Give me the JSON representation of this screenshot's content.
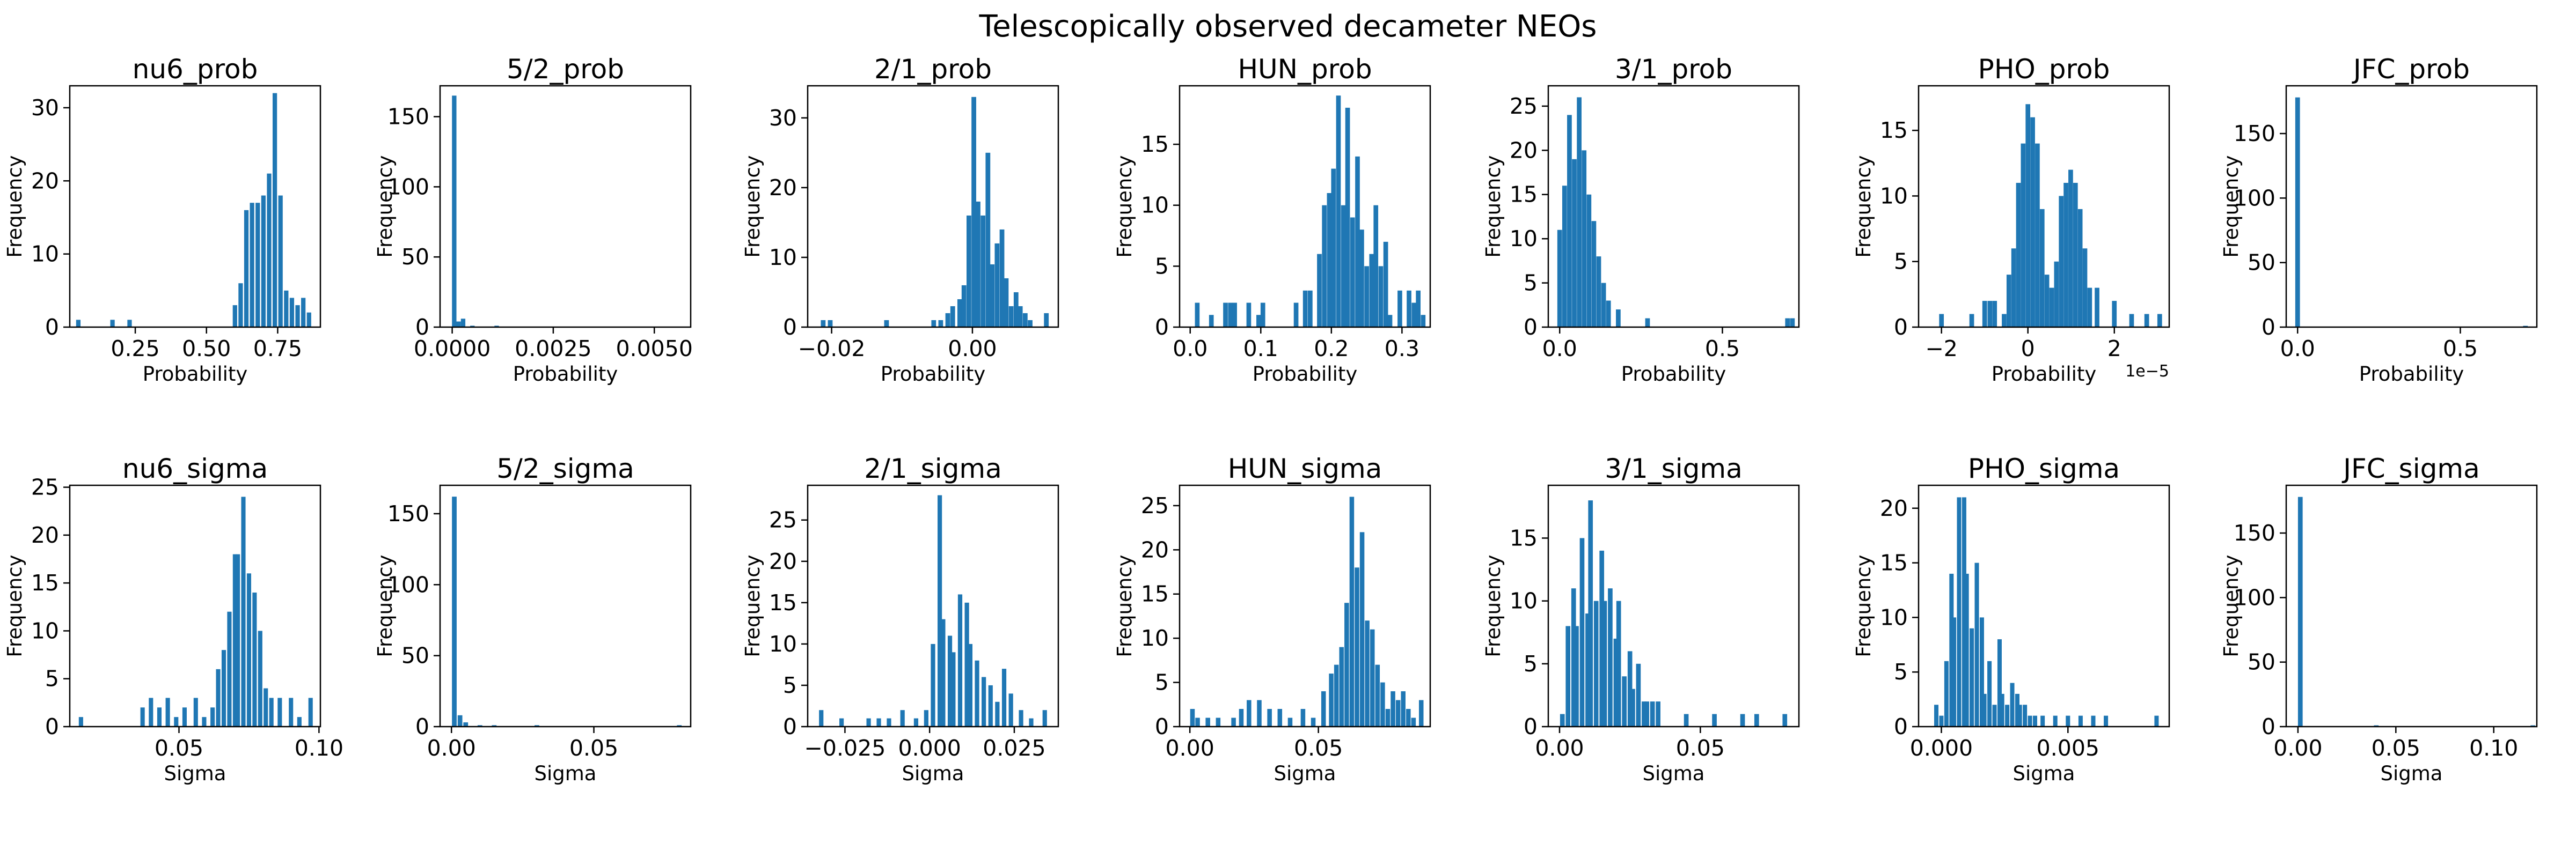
{
  "figure": {
    "suptitle": "Telescopically observed decameter NEOs",
    "bar_color": "#1f77b4"
  },
  "chart_data": [
    {
      "type": "bar",
      "title": "nu6_prob",
      "xlabel": "Probability",
      "ylabel": "Frequency",
      "xlim": [
        0.02,
        0.9
      ],
      "ylim": [
        0,
        33
      ],
      "xticks": [
        0.25,
        0.5,
        0.75
      ],
      "xtick_labels": [
        "0.25",
        "0.50",
        "0.75"
      ],
      "yticks": [
        0,
        10,
        20,
        30
      ],
      "ytick_labels": [
        "0",
        "10",
        "20",
        "30"
      ],
      "offset_label": "",
      "bin_width": 0.0155,
      "bins_x": [
        0.05,
        0.17,
        0.23,
        0.6,
        0.62,
        0.64,
        0.66,
        0.68,
        0.7,
        0.72,
        0.74,
        0.76,
        0.78,
        0.8,
        0.82,
        0.84,
        0.86
      ],
      "values": [
        1,
        1,
        1,
        3,
        6,
        16,
        17,
        17,
        18,
        21,
        32,
        18,
        5,
        4,
        3,
        4,
        2
      ]
    },
    {
      "type": "bar",
      "title": "5/2_prob",
      "xlabel": "Probability",
      "ylabel": "Frequency",
      "xlim": [
        -0.0003,
        0.0059
      ],
      "ylim": [
        0,
        172
      ],
      "xticks": [
        0,
        0.0025,
        0.005
      ],
      "xtick_labels": [
        "0.0000",
        "0.0025",
        "0.0050"
      ],
      "yticks": [
        0,
        50,
        100,
        150
      ],
      "ytick_labels": [
        "0",
        "50",
        "100",
        "150"
      ],
      "offset_label": "",
      "bin_width": 0.00011,
      "bins_x": [
        5e-05,
        0.00016,
        0.00027,
        0.0005,
        0.0011
      ],
      "values": [
        165,
        4,
        6,
        1,
        1
      ]
    },
    {
      "type": "bar",
      "title": "2/1_prob",
      "xlabel": "Probability",
      "ylabel": "Frequency",
      "xlim": [
        -0.0234,
        0.0122
      ],
      "ylim": [
        0,
        34.6
      ],
      "xticks": [
        -0.02,
        0
      ],
      "xtick_labels": [
        "−0.02",
        "0.00"
      ],
      "yticks": [
        0,
        10,
        20,
        30
      ],
      "ytick_labels": [
        "0",
        "10",
        "20",
        "30"
      ],
      "offset_label": "",
      "bin_width": 0.00067,
      "bins_x": [
        -0.0212,
        -0.0202,
        -0.0122,
        -0.0055,
        -0.0045,
        -0.0035,
        -0.0028,
        -0.0018,
        -0.0012,
        -0.0005,
        0.0002,
        0.0008,
        0.0015,
        0.0022,
        0.0028,
        0.0035,
        0.0042,
        0.0048,
        0.0055,
        0.0062,
        0.0068,
        0.0075,
        0.0082,
        0.0105
      ],
      "values": [
        1,
        1,
        1,
        1,
        1,
        2,
        3,
        4,
        6,
        16,
        33,
        18,
        16,
        25,
        9,
        12,
        14,
        7,
        3,
        5,
        3,
        2,
        1,
        2
      ]
    },
    {
      "type": "bar",
      "title": "HUN_prob",
      "xlabel": "Probability",
      "ylabel": "Frequency",
      "xlim": [
        -0.015,
        0.34
      ],
      "ylim": [
        0,
        19.8
      ],
      "xticks": [
        0,
        0.1,
        0.2,
        0.3
      ],
      "xtick_labels": [
        "0.0",
        "0.1",
        "0.2",
        "0.3"
      ],
      "yticks": [
        0,
        5,
        10,
        15
      ],
      "ytick_labels": [
        "0",
        "5",
        "10",
        "15"
      ],
      "offset_label": "",
      "bin_width": 0.0066,
      "bins_x": [
        0.01,
        0.03,
        0.05,
        0.057,
        0.063,
        0.083,
        0.097,
        0.103,
        0.15,
        0.163,
        0.17,
        0.183,
        0.19,
        0.197,
        0.203,
        0.21,
        0.217,
        0.223,
        0.23,
        0.237,
        0.243,
        0.25,
        0.257,
        0.263,
        0.27,
        0.277,
        0.283,
        0.297,
        0.31,
        0.317,
        0.323,
        0.33
      ],
      "values": [
        2,
        1,
        2,
        2,
        2,
        2,
        1,
        2,
        2,
        3,
        3,
        6,
        10,
        11,
        13,
        19,
        10,
        18,
        9,
        14,
        8,
        5,
        6,
        10,
        5,
        7,
        1,
        3,
        3,
        2,
        3,
        1
      ]
    },
    {
      "type": "bar",
      "title": "3/1_prob",
      "xlabel": "Probability",
      "ylabel": "Frequency",
      "xlim": [
        -0.035,
        0.735
      ],
      "ylim": [
        0,
        27.3
      ],
      "xticks": [
        0,
        0.5
      ],
      "xtick_labels": [
        "0.0",
        "0.5"
      ],
      "yticks": [
        0,
        5,
        10,
        15,
        20,
        25
      ],
      "ytick_labels": [
        "0",
        "5",
        "10",
        "15",
        "20",
        "25"
      ],
      "offset_label": "",
      "bin_width": 0.0144,
      "bins_x": [
        0.0,
        0.015,
        0.03,
        0.045,
        0.06,
        0.075,
        0.09,
        0.105,
        0.12,
        0.135,
        0.15,
        0.18,
        0.27,
        0.7,
        0.715
      ],
      "values": [
        11,
        16,
        24,
        19,
        26,
        20,
        15,
        12,
        8,
        5,
        3,
        2,
        1,
        1,
        1
      ]
    },
    {
      "type": "bar",
      "title": "PHO_prob",
      "xlabel": "Probability",
      "ylabel": "Frequency",
      "xlim": [
        -2.53,
        3.27
      ],
      "ylim": [
        0,
        18.4
      ],
      "xticks": [
        -2,
        0,
        2
      ],
      "xtick_labels": [
        "−2",
        "0",
        "2"
      ],
      "yticks": [
        0,
        5,
        10,
        15
      ],
      "ytick_labels": [
        "0",
        "5",
        "10",
        "15"
      ],
      "offset_label": "1e−5",
      "bin_width": 0.108,
      "bins_x": [
        -2.0,
        -1.3,
        -1.0,
        -0.88,
        -0.77,
        -0.55,
        -0.44,
        -0.33,
        -0.22,
        -0.11,
        0.0,
        0.11,
        0.22,
        0.33,
        0.44,
        0.55,
        0.66,
        0.77,
        0.88,
        0.99,
        1.1,
        1.21,
        1.32,
        1.43,
        1.6,
        2.0,
        2.4,
        2.75,
        3.05
      ],
      "values": [
        1,
        1,
        2,
        2,
        2,
        1,
        4,
        6,
        11,
        14,
        17,
        16,
        14,
        9,
        4,
        3,
        5,
        10,
        11,
        12,
        11,
        9,
        6,
        3,
        3,
        2,
        1,
        1,
        1
      ]
    },
    {
      "type": "bar",
      "title": "JFC_prob",
      "xlabel": "Probability",
      "ylabel": "Frequency",
      "xlim": [
        -0.035,
        0.735
      ],
      "ylim": [
        0,
        187
      ],
      "xticks": [
        0,
        0.5
      ],
      "xtick_labels": [
        "0.0",
        "0.5"
      ],
      "yticks": [
        0,
        50,
        100,
        150
      ],
      "ytick_labels": [
        "0",
        "50",
        "100",
        "150"
      ],
      "offset_label": "",
      "bin_width": 0.0144,
      "bins_x": [
        0.0,
        0.7
      ],
      "values": [
        178,
        1
      ]
    },
    {
      "type": "bar",
      "title": "nu6_sigma",
      "xlabel": "Sigma",
      "ylabel": "Frequency",
      "xlim": [
        0.011,
        0.1005
      ],
      "ylim": [
        0,
        25.2
      ],
      "xticks": [
        0.05,
        0.1
      ],
      "xtick_labels": [
        "0.05",
        "0.10"
      ],
      "yticks": [
        0,
        5,
        10,
        15,
        20,
        25
      ],
      "ytick_labels": [
        "0",
        "5",
        "10",
        "15",
        "20",
        "25"
      ],
      "offset_label": "",
      "bin_width": 0.00155,
      "bins_x": [
        0.015,
        0.037,
        0.04,
        0.043,
        0.046,
        0.049,
        0.052,
        0.056,
        0.059,
        0.062,
        0.064,
        0.066,
        0.068,
        0.07,
        0.071,
        0.073,
        0.075,
        0.077,
        0.079,
        0.081,
        0.083,
        0.086,
        0.09,
        0.093,
        0.097
      ],
      "values": [
        1,
        2,
        3,
        2,
        3,
        1,
        2,
        3,
        1,
        2,
        6,
        8,
        12,
        18,
        18,
        24,
        16,
        14,
        10,
        4,
        3,
        3,
        3,
        1,
        3
      ]
    },
    {
      "type": "bar",
      "title": "5/2_sigma",
      "xlabel": "Sigma",
      "ylabel": "Frequency",
      "xlim": [
        -0.004,
        0.084
      ],
      "ylim": [
        0,
        170
      ],
      "xticks": [
        0,
        0.05
      ],
      "xtick_labels": [
        "0.00",
        "0.05"
      ],
      "yticks": [
        0,
        50,
        100,
        150
      ],
      "ytick_labels": [
        "0",
        "50",
        "100",
        "150"
      ],
      "offset_label": "",
      "bin_width": 0.00165,
      "bins_x": [
        0.001,
        0.003,
        0.005,
        0.01,
        0.015,
        0.03,
        0.08
      ],
      "values": [
        162,
        8,
        3,
        1,
        1,
        1,
        1
      ]
    },
    {
      "type": "bar",
      "title": "2/1_sigma",
      "xlabel": "Sigma",
      "ylabel": "Frequency",
      "xlim": [
        -0.036,
        0.038
      ],
      "ylim": [
        0,
        29.2
      ],
      "xticks": [
        -0.025,
        0,
        0.025
      ],
      "xtick_labels": [
        "−0.025",
        "0.000",
        "0.025"
      ],
      "yticks": [
        0,
        5,
        10,
        15,
        20,
        25
      ],
      "ytick_labels": [
        "0",
        "5",
        "10",
        "15",
        "20",
        "25"
      ],
      "offset_label": "",
      "bin_width": 0.0013,
      "bins_x": [
        -0.032,
        -0.026,
        -0.018,
        -0.015,
        -0.012,
        -0.008,
        -0.004,
        -0.001,
        0.001,
        0.003,
        0.004,
        0.006,
        0.007,
        0.009,
        0.011,
        0.012,
        0.014,
        0.016,
        0.018,
        0.02,
        0.022,
        0.024,
        0.027,
        0.03,
        0.034
      ],
      "values": [
        2,
        1,
        1,
        1,
        1,
        2,
        1,
        2,
        10,
        28,
        13,
        11,
        9,
        16,
        15,
        10,
        8,
        6,
        5,
        3,
        7,
        4,
        2,
        1,
        2
      ]
    },
    {
      "type": "bar",
      "title": "HUN_sigma",
      "xlabel": "Sigma",
      "ylabel": "Frequency",
      "xlim": [
        -0.004,
        0.0935
      ],
      "ylim": [
        0,
        27.3
      ],
      "xticks": [
        0,
        0.05
      ],
      "xtick_labels": [
        "0.00",
        "0.05"
      ],
      "yticks": [
        0,
        5,
        10,
        15,
        20,
        25
      ],
      "ytick_labels": [
        "0",
        "5",
        "10",
        "15",
        "20",
        "25"
      ],
      "offset_label": "",
      "bin_width": 0.00178,
      "bins_x": [
        0.001,
        0.003,
        0.007,
        0.011,
        0.017,
        0.02,
        0.023,
        0.027,
        0.031,
        0.035,
        0.039,
        0.044,
        0.048,
        0.052,
        0.055,
        0.057,
        0.059,
        0.061,
        0.063,
        0.065,
        0.067,
        0.069,
        0.071,
        0.073,
        0.075,
        0.077,
        0.079,
        0.081,
        0.083,
        0.085,
        0.087,
        0.09
      ],
      "values": [
        2,
        1,
        1,
        1,
        1,
        2,
        3,
        3,
        2,
        2,
        1,
        2,
        1,
        4,
        6,
        7,
        9,
        14,
        26,
        18,
        22,
        12,
        11,
        7,
        5,
        2,
        4,
        3,
        4,
        2,
        1,
        3
      ]
    },
    {
      "type": "bar",
      "title": "3/1_sigma",
      "xlabel": "Sigma",
      "ylabel": "Frequency",
      "xlim": [
        -0.004,
        0.085
      ],
      "ylim": [
        0,
        19.2
      ],
      "xticks": [
        0,
        0.05
      ],
      "xtick_labels": [
        "0.00",
        "0.05"
      ],
      "yticks": [
        0,
        5,
        10,
        15
      ],
      "ytick_labels": [
        "0",
        "5",
        "10",
        "15"
      ],
      "offset_label": "",
      "bin_width": 0.00165,
      "bins_x": [
        0.001,
        0.003,
        0.005,
        0.006,
        0.008,
        0.01,
        0.011,
        0.013,
        0.015,
        0.016,
        0.018,
        0.02,
        0.021,
        0.023,
        0.025,
        0.026,
        0.028,
        0.03,
        0.031,
        0.033,
        0.035,
        0.045,
        0.055,
        0.065,
        0.07,
        0.08
      ],
      "values": [
        1,
        8,
        11,
        8,
        15,
        9,
        18,
        10,
        14,
        10,
        11,
        7,
        10,
        4,
        6,
        3,
        5,
        2,
        2,
        2,
        2,
        1,
        1,
        1,
        1,
        1
      ]
    },
    {
      "type": "bar",
      "title": "PHO_sigma",
      "xlabel": "Sigma",
      "ylabel": "Frequency",
      "xlim": [
        -0.0009,
        0.009
      ],
      "ylim": [
        0,
        22.1
      ],
      "xticks": [
        0,
        0.005
      ],
      "xtick_labels": [
        "0.000",
        "0.005"
      ],
      "yticks": [
        0,
        5,
        10,
        15,
        20
      ],
      "ytick_labels": [
        "0",
        "5",
        "10",
        "15",
        "20"
      ],
      "offset_label": "",
      "bin_width": 0.00017,
      "bins_x": [
        -0.0002,
        0.0,
        0.0002,
        0.0004,
        0.0005,
        0.0007,
        0.0009,
        0.001,
        0.0012,
        0.0014,
        0.0016,
        0.0017,
        0.0019,
        0.0021,
        0.0023,
        0.0024,
        0.0026,
        0.0028,
        0.003,
        0.0031,
        0.0033,
        0.0035,
        0.0037,
        0.004,
        0.0045,
        0.005,
        0.0055,
        0.006,
        0.0065,
        0.0085
      ],
      "values": [
        2,
        1,
        6,
        14,
        10,
        21,
        21,
        14,
        9,
        15,
        10,
        3,
        6,
        2,
        8,
        3,
        2,
        4,
        3,
        2,
        2,
        1,
        1,
        1,
        1,
        1,
        1,
        1,
        1,
        1
      ]
    },
    {
      "type": "bar",
      "title": "JFC_sigma",
      "xlabel": "Sigma",
      "ylabel": "Frequency",
      "xlim": [
        -0.006,
        0.122
      ],
      "ylim": [
        0,
        187
      ],
      "xticks": [
        0,
        0.05,
        0.1
      ],
      "xtick_labels": [
        "0.00",
        "0.05",
        "0.10"
      ],
      "yticks": [
        0,
        50,
        100,
        150
      ],
      "ytick_labels": [
        "0",
        "50",
        "100",
        "150"
      ],
      "offset_label": "",
      "bin_width": 0.0024,
      "bins_x": [
        0.0012,
        0.04,
        0.12
      ],
      "values": [
        178,
        1,
        1
      ]
    }
  ]
}
